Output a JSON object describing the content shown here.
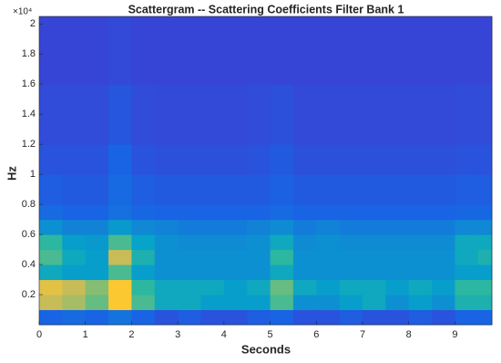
{
  "chart_data": {
    "type": "heatmap",
    "title": "Scattergram -- Scattering Coefficients Filter Bank 1",
    "x_label": "Seconds",
    "y_label": "Hz",
    "y_multiplier": "×10⁴",
    "colormap": "parula",
    "xlim": [
      0,
      9.8
    ],
    "ylim": [
      0,
      2.05
    ],
    "xticks": [
      0,
      1,
      2,
      3,
      4,
      5,
      6,
      7,
      8,
      9
    ],
    "yticks": [
      0.2,
      0.4,
      0.6,
      0.8,
      1,
      1.2,
      1.4,
      1.6,
      1.8,
      2
    ],
    "x_edges": [
      0,
      0.5,
      1,
      1.5,
      2,
      2.5,
      3,
      3.5,
      4,
      4.5,
      5,
      5.5,
      6,
      6.5,
      7,
      7.5,
      8,
      8.5,
      9,
      9.5,
      9.8
    ],
    "y_edges": [
      0,
      0.1,
      0.2,
      0.3,
      0.4,
      0.5,
      0.6,
      0.7,
      0.8,
      1,
      1.2,
      1.6,
      2.05
    ],
    "values": [
      [
        0.2,
        0.22,
        0.2,
        0.25,
        0.2,
        0.15,
        0.18,
        0.15,
        0.15,
        0.18,
        0.2,
        0.15,
        0.15,
        0.18,
        0.15,
        0.15,
        0.18,
        0.15,
        0.2,
        0.2
      ],
      [
        0.8,
        0.75,
        0.65,
        0.9,
        0.6,
        0.45,
        0.45,
        0.4,
        0.4,
        0.4,
        0.6,
        0.35,
        0.35,
        0.4,
        0.45,
        0.35,
        0.4,
        0.35,
        0.5,
        0.5
      ],
      [
        0.85,
        0.8,
        0.7,
        0.9,
        0.55,
        0.45,
        0.45,
        0.45,
        0.4,
        0.45,
        0.65,
        0.45,
        0.4,
        0.45,
        0.45,
        0.4,
        0.45,
        0.4,
        0.55,
        0.55
      ],
      [
        0.45,
        0.4,
        0.4,
        0.6,
        0.4,
        0.35,
        0.35,
        0.35,
        0.35,
        0.35,
        0.45,
        0.35,
        0.35,
        0.35,
        0.35,
        0.35,
        0.35,
        0.35,
        0.4,
        0.4
      ],
      [
        0.6,
        0.45,
        0.4,
        0.8,
        0.5,
        0.35,
        0.35,
        0.35,
        0.35,
        0.35,
        0.55,
        0.35,
        0.35,
        0.35,
        0.35,
        0.35,
        0.35,
        0.35,
        0.45,
        0.5
      ],
      [
        0.55,
        0.4,
        0.38,
        0.6,
        0.42,
        0.35,
        0.33,
        0.33,
        0.33,
        0.35,
        0.45,
        0.33,
        0.35,
        0.33,
        0.33,
        0.33,
        0.33,
        0.33,
        0.45,
        0.45
      ],
      [
        0.35,
        0.3,
        0.3,
        0.38,
        0.32,
        0.3,
        0.28,
        0.28,
        0.28,
        0.3,
        0.33,
        0.28,
        0.3,
        0.28,
        0.28,
        0.28,
        0.28,
        0.28,
        0.32,
        0.32
      ],
      [
        0.22,
        0.2,
        0.2,
        0.24,
        0.21,
        0.2,
        0.2,
        0.2,
        0.2,
        0.2,
        0.22,
        0.2,
        0.2,
        0.2,
        0.2,
        0.2,
        0.2,
        0.2,
        0.21,
        0.21
      ],
      [
        0.18,
        0.17,
        0.17,
        0.22,
        0.18,
        0.17,
        0.17,
        0.17,
        0.17,
        0.17,
        0.19,
        0.17,
        0.17,
        0.17,
        0.17,
        0.17,
        0.17,
        0.17,
        0.18,
        0.18
      ],
      [
        0.15,
        0.15,
        0.15,
        0.2,
        0.15,
        0.14,
        0.14,
        0.14,
        0.14,
        0.15,
        0.17,
        0.14,
        0.14,
        0.14,
        0.14,
        0.14,
        0.14,
        0.14,
        0.15,
        0.15
      ],
      [
        0.13,
        0.13,
        0.13,
        0.16,
        0.13,
        0.12,
        0.12,
        0.12,
        0.12,
        0.13,
        0.14,
        0.12,
        0.12,
        0.12,
        0.12,
        0.12,
        0.12,
        0.12,
        0.13,
        0.13
      ],
      [
        0.11,
        0.11,
        0.11,
        0.12,
        0.11,
        0.11,
        0.11,
        0.11,
        0.11,
        0.11,
        0.11,
        0.11,
        0.11,
        0.11,
        0.11,
        0.11,
        0.11,
        0.11,
        0.11,
        0.11
      ]
    ]
  }
}
